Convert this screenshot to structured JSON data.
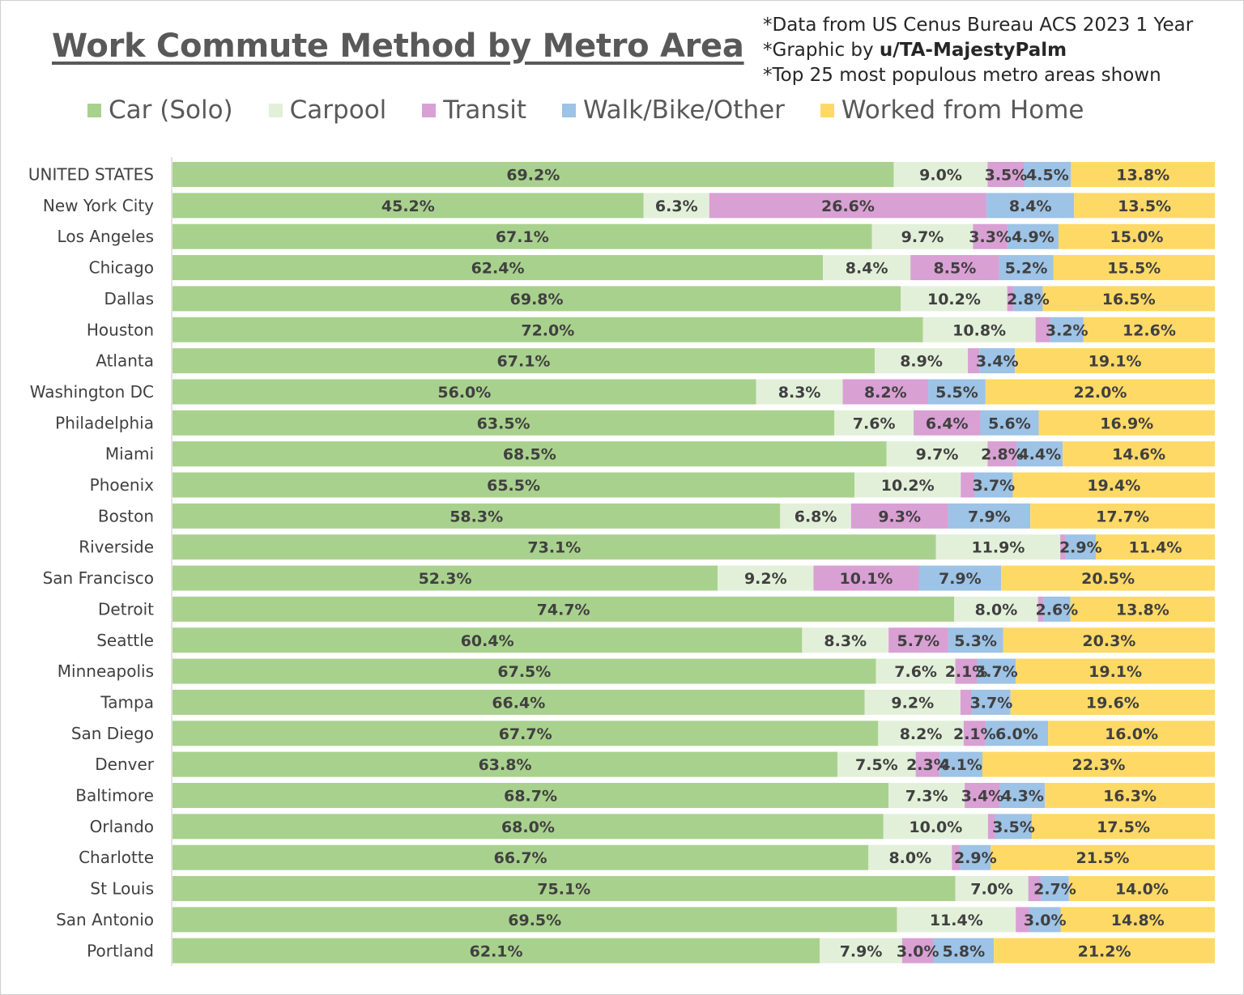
{
  "chart_data": {
    "type": "bar",
    "orientation": "horizontal",
    "stacked": "100%",
    "title": "Work Commute Method by Metro Area",
    "notes": [
      "*Data from US Cenus Bureau ACS 2023 1 Year",
      "*Graphic by ",
      "*Top 25 most populous metro areas shown"
    ],
    "credit": "u/TA-MajestyPalm",
    "legend_position": "top",
    "categories": [
      "UNITED STATES",
      "New York City",
      "Los Angeles",
      "Chicago",
      "Dallas",
      "Houston",
      "Atlanta",
      "Washington DC",
      "Philadelphia",
      "Miami",
      "Phoenix",
      "Boston",
      "Riverside",
      "San Francisco",
      "Detroit",
      "Seattle",
      "Minneapolis",
      "Tampa",
      "San Diego",
      "Denver",
      "Baltimore",
      "Orlando",
      "Charlotte",
      "St Louis",
      "San Antonio",
      "Portland"
    ],
    "series": [
      {
        "name": "Car (Solo)",
        "color": "#a9d18e",
        "values": [
          69.2,
          45.2,
          67.1,
          62.4,
          69.8,
          72.0,
          67.1,
          56.0,
          63.5,
          68.5,
          65.5,
          58.3,
          73.1,
          52.3,
          74.7,
          60.4,
          67.5,
          66.4,
          67.7,
          63.8,
          68.7,
          68.0,
          66.7,
          75.1,
          69.5,
          62.1
        ],
        "labels": [
          "69.2%",
          "45.2%",
          "67.1%",
          "62.4%",
          "69.8%",
          "72.0%",
          "67.1%",
          "56.0%",
          "63.5%",
          "68.5%",
          "65.5%",
          "58.3%",
          "73.1%",
          "52.3%",
          "74.7%",
          "60.4%",
          "67.5%",
          "66.4%",
          "67.7%",
          "63.8%",
          "68.7%",
          "68.0%",
          "66.7%",
          "75.1%",
          "69.5%",
          "62.1%"
        ]
      },
      {
        "name": "Carpool",
        "color": "#e2f0d9",
        "values": [
          9.0,
          6.3,
          9.7,
          8.4,
          10.2,
          10.8,
          8.9,
          8.3,
          7.6,
          9.7,
          10.2,
          6.8,
          11.9,
          9.2,
          8.0,
          8.3,
          7.6,
          9.2,
          8.2,
          7.5,
          7.3,
          10.0,
          8.0,
          7.0,
          11.4,
          7.9
        ],
        "labels": [
          "9.0%",
          "6.3%",
          "9.7%",
          "8.4%",
          "10.2%",
          "10.8%",
          "8.9%",
          "8.3%",
          "7.6%",
          "9.7%",
          "10.2%",
          "6.8%",
          "11.9%",
          "9.2%",
          "8.0%",
          "8.3%",
          "7.6%",
          "9.2%",
          "8.2%",
          "7.5%",
          "7.3%",
          "10.0%",
          "8.0%",
          "7.0%",
          "11.4%",
          "7.9%"
        ]
      },
      {
        "name": "Transit",
        "color": "#d9a0d4",
        "values": [
          3.5,
          26.6,
          3.3,
          8.5,
          0.6,
          1.4,
          1.1,
          8.2,
          6.4,
          2.8,
          1.3,
          9.3,
          0.5,
          10.1,
          0.5,
          5.7,
          2.1,
          1.1,
          2.1,
          2.3,
          3.4,
          0.7,
          0.8,
          1.2,
          1.3,
          3.0
        ],
        "labels": [
          "3.5%",
          "26.6%",
          "3.3%",
          "8.5%",
          "",
          "",
          "",
          "8.2%",
          "6.4%",
          "2.8%",
          "",
          "9.3%",
          "",
          "10.1%",
          "",
          "5.7%",
          "2.1%",
          "",
          "2.1%",
          "2.3%",
          "3.4%",
          "",
          "",
          "",
          "",
          "3.0%"
        ]
      },
      {
        "name": "Walk/Bike/Other",
        "color": "#9dc3e6",
        "values": [
          4.5,
          8.4,
          4.9,
          5.2,
          2.8,
          3.2,
          3.4,
          5.5,
          5.6,
          4.4,
          3.7,
          7.9,
          2.9,
          7.9,
          2.6,
          5.3,
          3.7,
          3.7,
          6.0,
          4.1,
          4.3,
          3.5,
          2.9,
          2.7,
          3.0,
          5.8
        ],
        "labels": [
          "4.5%",
          "8.4%",
          "4.9%",
          "5.2%",
          "2.8%",
          "3.2%",
          "3.4%",
          "5.5%",
          "5.6%",
          "4.4%",
          "3.7%",
          "7.9%",
          "2.9%",
          "7.9%",
          "2.6%",
          "5.3%",
          "3.7%",
          "3.7%",
          "6.0%",
          "4.1%",
          "4.3%",
          "3.5%",
          "2.9%",
          "2.7%",
          "3.0%",
          "5.8%"
        ]
      },
      {
        "name": "Worked from Home",
        "color": "#ffd966",
        "values": [
          13.8,
          13.5,
          15.0,
          15.5,
          16.5,
          12.6,
          19.1,
          22.0,
          16.9,
          14.6,
          19.4,
          17.7,
          11.4,
          20.5,
          13.8,
          20.3,
          19.1,
          19.6,
          16.0,
          22.3,
          16.3,
          17.5,
          21.5,
          14.0,
          14.8,
          21.2
        ],
        "labels": [
          "13.8%",
          "13.5%",
          "15.0%",
          "15.5%",
          "16.5%",
          "12.6%",
          "19.1%",
          "22.0%",
          "16.9%",
          "14.6%",
          "19.4%",
          "17.7%",
          "11.4%",
          "20.5%",
          "13.8%",
          "20.3%",
          "19.1%",
          "19.6%",
          "16.0%",
          "22.3%",
          "16.3%",
          "17.5%",
          "21.5%",
          "14.0%",
          "14.8%",
          "21.2%"
        ]
      }
    ],
    "xlim": [
      0,
      100
    ],
    "grid": false
  }
}
